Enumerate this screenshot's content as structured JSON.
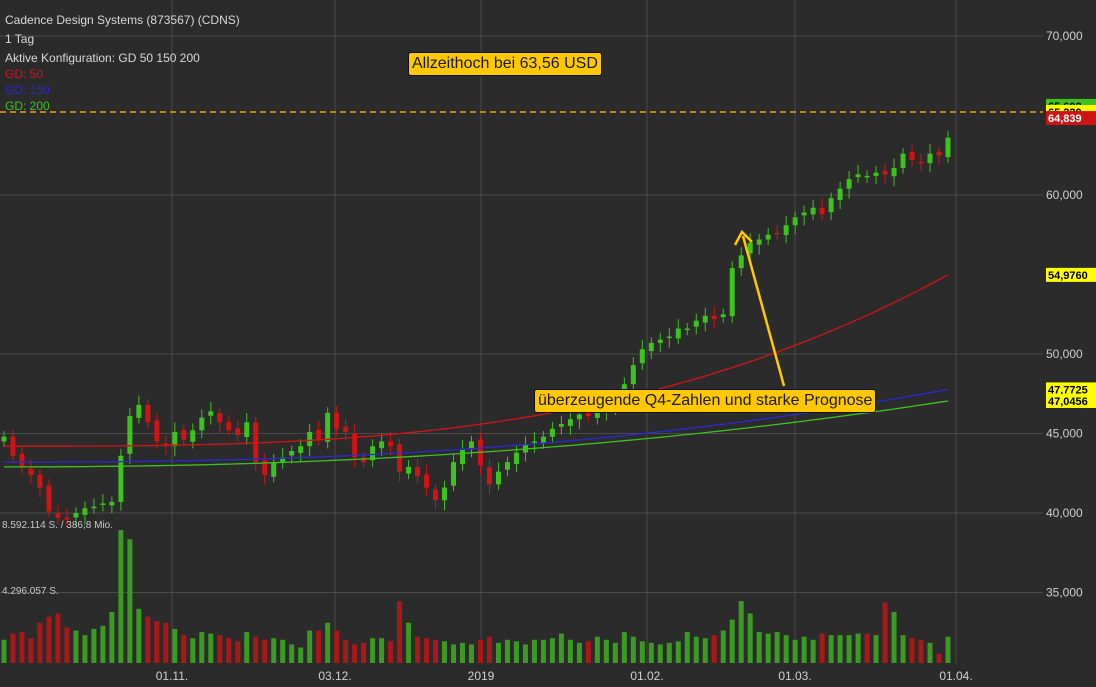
{
  "header": {
    "title": "Cadence Design Systems (873567) (CDNS)",
    "interval": "1 Tag",
    "config": "Aktive Konfiguration: GD 50 150 200",
    "gd50": "GD: 50",
    "gd150": "GD: 150",
    "gd200": "GD: 200"
  },
  "colors": {
    "background": "#2b2b2b",
    "up": "#3ec21e",
    "down": "#d01414",
    "gd50": "#d01414",
    "gd150": "#2a2ad0",
    "gd200": "#3ec21e",
    "annotation": "#ffc800",
    "athLine": "#f0a000"
  },
  "annotations": {
    "ath": "Allzeithoch bei 63,56 USD",
    "q4": "überzeugende Q4-Zahlen und starke Prognose"
  },
  "volume_labels": {
    "max": "8.592.114 S. / 386,8 Mio.",
    "mid": "4.296.057 S."
  },
  "chart_data": {
    "type": "candlestick",
    "y_ticks": [
      "70,000",
      "60,000",
      "50,000",
      "45,000",
      "40,000",
      "35,000"
    ],
    "x_ticks": [
      "01.11.",
      "03.12.",
      "2019",
      "01.02.",
      "01.03.",
      "01.04."
    ],
    "price_badges": [
      {
        "label": "65,602",
        "value": 65.602,
        "bg": "#3ec21e",
        "fg": "#000000"
      },
      {
        "label": "65,220",
        "value": 65.22,
        "bg": "#ffff00",
        "fg": "#000000"
      },
      {
        "label": "64,839",
        "value": 64.839,
        "bg": "#d01414",
        "fg": "#ffffff"
      },
      {
        "label": "54,9760",
        "value": 54.976,
        "bg": "#ffff00",
        "fg": "#000000"
      },
      {
        "label": "47,7725",
        "value": 47.7725,
        "bg": "#ffff00",
        "fg": "#000000"
      },
      {
        "label": "47,0456",
        "value": 47.0456,
        "bg": "#ffff00",
        "fg": "#000000"
      }
    ],
    "all_time_high": 63.56,
    "closes": [
      44.8,
      43.6,
      42.9,
      42.4,
      41.6,
      40.1,
      39.7,
      39.6,
      40.0,
      40.3,
      40.4,
      40.6,
      40.7,
      43.6,
      46.1,
      46.8,
      45.7,
      44.5,
      44.2,
      45.1,
      44.6,
      45.2,
      46.0,
      46.4,
      45.7,
      45.2,
      44.9,
      45.7,
      43.2,
      42.4,
      43.2,
      43.5,
      43.9,
      44.2,
      45.1,
      44.6,
      46.3,
      45.3,
      45.1,
      43.5,
      43.2,
      44.2,
      44.5,
      44.2,
      42.6,
      42.9,
      42.3,
      41.6,
      40.8,
      41.6,
      43.2,
      44.0,
      44.5,
      43.0,
      41.8,
      42.6,
      43.2,
      43.8,
      44.3,
      44.5,
      44.8,
      45.3,
      45.6,
      45.9,
      46.2,
      46.1,
      46.3,
      46.6,
      47.2,
      48.1,
      49.3,
      50.3,
      50.7,
      50.9,
      51.1,
      51.6,
      51.6,
      52.1,
      52.4,
      52.2,
      52.5,
      55.4,
      56.2,
      57.0,
      57.2,
      57.5,
      57.6,
      58.1,
      58.6,
      58.9,
      59.2,
      58.8,
      59.8,
      60.4,
      61.0,
      61.3,
      61.2,
      61.4,
      61.3,
      61.7,
      62.6,
      62.2,
      62.0,
      62.6,
      62.5,
      63.6
    ],
    "gd50_range": [
      44.2,
      54.976
    ],
    "gd150_range": [
      43.2,
      47.7725
    ],
    "gd200_range": [
      42.9,
      47.0456
    ],
    "volume_max": 8592114,
    "volumes": [
      1.5,
      1.9,
      2.0,
      1.6,
      2.6,
      3.0,
      3.2,
      2.3,
      2.1,
      1.8,
      2.2,
      2.4,
      3.3,
      8.59,
      8.0,
      3.5,
      3.0,
      2.7,
      2.6,
      2.2,
      1.8,
      1.6,
      2.0,
      1.9,
      1.8,
      1.6,
      1.4,
      2.0,
      1.7,
      1.5,
      1.6,
      1.5,
      1.2,
      1.0,
      2.1,
      2.1,
      2.6,
      2.1,
      1.5,
      1.2,
      1.3,
      1.6,
      1.6,
      1.4,
      4.0,
      2.6,
      1.7,
      1.6,
      1.5,
      1.4,
      1.2,
      1.3,
      1.2,
      1.5,
      1.7,
      1.3,
      1.5,
      1.4,
      1.2,
      1.5,
      1.5,
      1.6,
      1.9,
      1.5,
      1.3,
      1.4,
      1.7,
      1.5,
      1.3,
      2.0,
      1.7,
      1.4,
      1.3,
      1.2,
      1.3,
      1.4,
      2.0,
      1.7,
      1.6,
      1.8,
      2.1,
      2.8,
      4.0,
      3.2,
      2.0,
      1.9,
      2.0,
      1.8,
      1.5,
      1.7,
      1.5,
      1.9,
      1.8,
      1.8,
      1.8,
      1.9,
      1.9,
      1.8,
      3.9,
      3.3,
      1.8,
      1.6,
      1.5,
      1.3,
      0.6,
      1.7
    ]
  }
}
